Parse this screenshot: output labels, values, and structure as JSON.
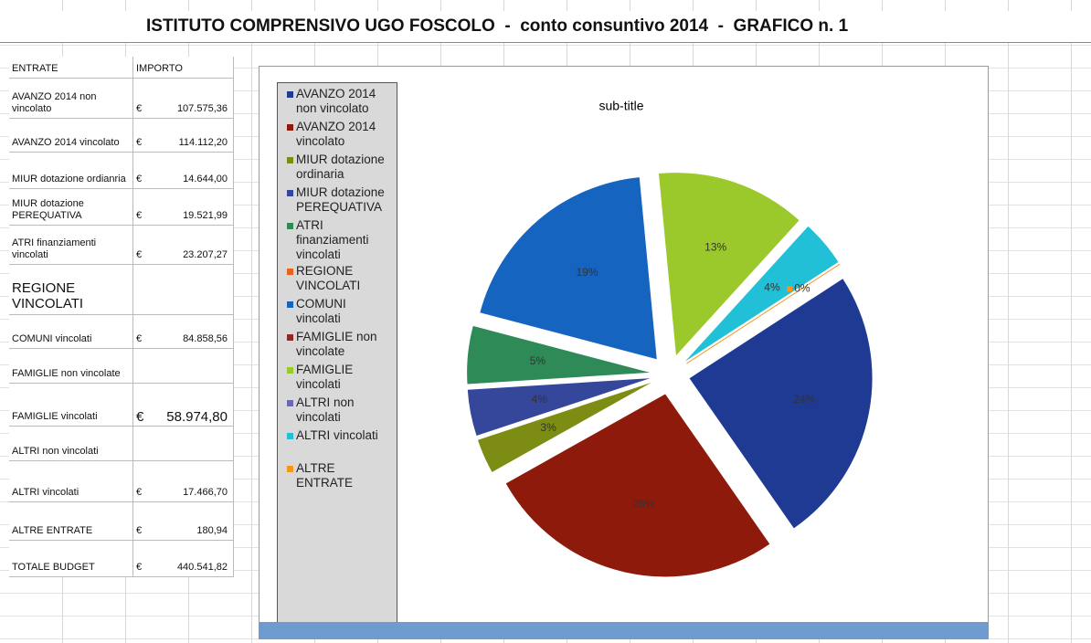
{
  "title": "ISTITUTO COMPRENSIVO UGO FOSCOLO  -  conto consuntivo 2014  -  GRAFICO n. 1",
  "table": {
    "header": [
      "ENTRATE",
      "IMPORTO"
    ],
    "rows": [
      {
        "label": "AVANZO 2014 non vincolato",
        "currency": "€",
        "amount": "107.575,36"
      },
      {
        "label": "AVANZO 2014 vincolato",
        "currency": "€",
        "amount": "114.112,20"
      },
      {
        "label": "MIUR dotazione ordianria",
        "currency": "€",
        "amount": "14.644,00"
      },
      {
        "label": "MIUR dotazione PEREQUATIVA",
        "currency": "€",
        "amount": "19.521,99"
      },
      {
        "label": "ATRI finanziamenti vincolati",
        "currency": "€",
        "amount": "23.207,27"
      },
      {
        "label": "REGIONE VINCOLATI"
      },
      {
        "label": "COMUNI vincolati",
        "currency": "€",
        "amount": "84.858,56"
      },
      {
        "label": "FAMIGLIE non vincolate"
      },
      {
        "label": "FAMIGLIE vincolati",
        "currency": "€",
        "amount": "58.974,80"
      },
      {
        "label": "ALTRI non vincolati"
      },
      {
        "label": "ALTRI vincolati",
        "currency": "€",
        "amount": "17.466,70"
      },
      {
        "label": "ALTRE  ENTRATE",
        "currency": "€",
        "amount": "180,94"
      },
      {
        "label": "TOTALE  BUDGET",
        "currency": "€",
        "amount": "440.541,82"
      }
    ]
  },
  "chart_data": {
    "type": "pie",
    "subtitle": "sub-title",
    "categories": [
      "AVANZO 2014 non vincolato",
      "AVANZO 2014 vincolato",
      "MIUR dotazione ordinaria",
      "MIUR dotazione PEREQUATIVA",
      "ATRI finanziamenti vincolati",
      "REGIONE VINCOLATI",
      "COMUNI vincolati",
      "FAMIGLIE non vincolate",
      "FAMIGLIE vincolati",
      "ALTRI non vincolati",
      "ALTRI vincolati",
      "ALTRE ENTRATE"
    ],
    "values": [
      24,
      26,
      3,
      4,
      5,
      null,
      19,
      null,
      13,
      null,
      4,
      0
    ],
    "value_labels": [
      "24%",
      "26%",
      "3%",
      "4%",
      "5%",
      null,
      "19%",
      null,
      "13%",
      null,
      "4%",
      "0%"
    ],
    "colors": [
      "#1f3a93",
      "#8e1a0c",
      "#7d8c12",
      "#34479a",
      "#2e8b57",
      "#e8641b",
      "#1565c0",
      "#8b2a2a",
      "#9bc92c",
      "#6a6ab0",
      "#22c0d6",
      "#f7941d"
    ],
    "legend": "left"
  }
}
